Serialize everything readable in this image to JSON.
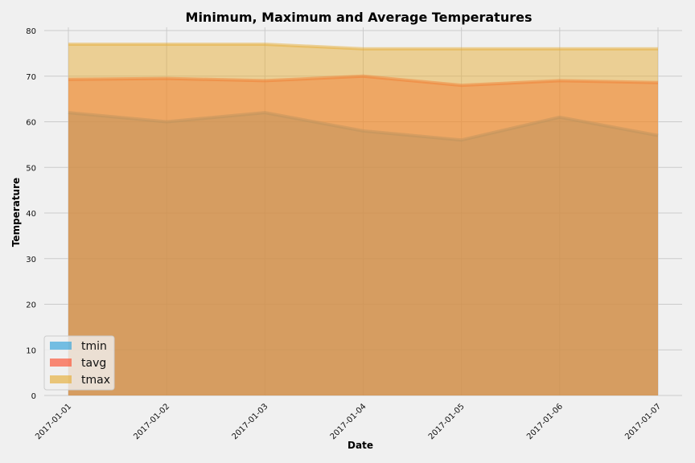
{
  "chart_data": {
    "type": "area",
    "title": "Minimum, Maximum and Average Temperatures",
    "xlabel": "Date",
    "ylabel": "Temperature",
    "categories": [
      "2017-01-01",
      "2017-01-02",
      "2017-01-03",
      "2017-01-04",
      "2017-01-05",
      "2017-01-06",
      "2017-01-07"
    ],
    "series": [
      {
        "name": "tmin",
        "values": [
          62,
          60,
          62,
          58,
          56,
          61,
          57
        ],
        "color": "#30a2da"
      },
      {
        "name": "tavg",
        "values": [
          69.3,
          69.5,
          69.0,
          70.0,
          68.0,
          69.0,
          68.6
        ],
        "color": "#fc4f30"
      },
      {
        "name": "tmax",
        "values": [
          77,
          77,
          77,
          76,
          76,
          76,
          76
        ],
        "color": "#e5ae38"
      }
    ],
    "ylim": [
      0,
      80
    ],
    "yticks": [
      0,
      10,
      20,
      30,
      40,
      50,
      60,
      70,
      80
    ],
    "grid": true,
    "legend": "lower-left",
    "style": "fivethirtyeight",
    "stacked": false
  }
}
